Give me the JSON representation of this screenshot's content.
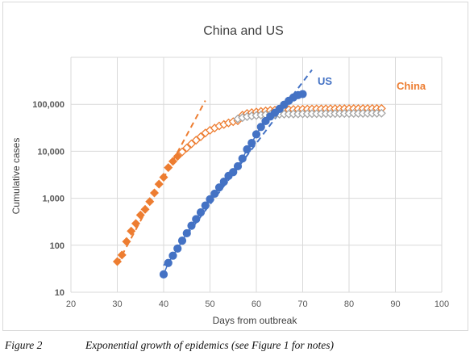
{
  "caption": {
    "label": "Figure 2",
    "text": "Exponential growth of epidemics  (see Figure 1 for notes)"
  },
  "chart_data": {
    "type": "scatter",
    "title": "China  and US",
    "xlabel": "Days from outbreak",
    "ylabel": "Cumulative cases",
    "xlim": [
      20,
      100
    ],
    "ylim": [
      10,
      1000000
    ],
    "yscale": "log",
    "grid": true,
    "x_ticks": [
      "20",
      "30",
      "40",
      "50",
      "60",
      "70",
      "80",
      "90",
      "100"
    ],
    "y_ticks": [
      "10",
      "100",
      "1,000",
      "10,000",
      "100,000"
    ],
    "y_tick_values": [
      10,
      100,
      1000,
      10000,
      100000
    ],
    "series": [
      {
        "name": "China",
        "color": "#ED7D31",
        "marker": "diamond",
        "x": [
          30,
          31,
          32,
          33,
          34,
          35,
          36,
          37,
          38,
          39,
          40,
          41,
          42,
          43,
          44,
          45,
          46,
          47,
          48,
          49,
          50,
          51,
          52,
          53,
          54,
          55,
          56,
          57,
          58,
          59,
          60,
          61,
          62,
          63,
          64,
          65,
          66,
          67,
          68,
          69,
          70,
          71,
          72,
          73,
          74,
          75,
          76,
          77,
          78,
          79,
          80,
          81,
          82,
          83,
          84,
          85,
          86,
          87
        ],
        "y": [
          45,
          62,
          120,
          200,
          290,
          440,
          580,
          850,
          1300,
          2000,
          2800,
          4500,
          6100,
          7800,
          9700,
          11800,
          14400,
          17200,
          20400,
          24500,
          28000,
          31200,
          34600,
          37200,
          40200,
          42700,
          44700,
          58800,
          63900,
          66500,
          68500,
          70500,
          72400,
          74200,
          75000,
          75600,
          76300,
          76900,
          77700,
          78100,
          78600,
          78900,
          79300,
          79800,
          80000,
          80200,
          80400,
          80500,
          80600,
          80700,
          80800,
          80900,
          81000,
          81100,
          81200,
          81300,
          81400,
          81500
        ],
        "filled_until_x": 43,
        "trend_x": [
          30,
          49
        ],
        "trend_y": [
          40,
          120000
        ]
      },
      {
        "name": "",
        "color": "#A5A5A5",
        "marker": "diamond",
        "x": [
          56,
          57,
          58,
          59,
          60,
          61,
          62,
          63,
          64,
          65,
          66,
          67,
          68,
          69,
          70,
          71,
          72,
          73,
          74,
          75,
          76,
          77,
          78,
          79,
          80,
          81,
          82,
          83,
          84,
          85,
          86,
          87
        ],
        "y": [
          49000,
          52000,
          54500,
          56500,
          57800,
          59000,
          59800,
          60500,
          61000,
          61400,
          61700,
          62000,
          62200,
          62400,
          62600,
          62800,
          63000,
          63100,
          63200,
          63300,
          63400,
          63500,
          63600,
          63700,
          63800,
          63900,
          64000,
          64100,
          64200,
          64300,
          64400,
          64500
        ]
      },
      {
        "name": "US",
        "color": "#4472C4",
        "marker": "circle",
        "x": [
          40,
          41,
          42,
          43,
          44,
          45,
          46,
          47,
          48,
          49,
          50,
          51,
          52,
          53,
          54,
          55,
          56,
          57,
          58,
          59,
          60,
          61,
          62,
          63,
          64,
          65,
          66,
          67,
          68,
          69,
          70
        ],
        "y": [
          24,
          42,
          60,
          85,
          125,
          180,
          260,
          360,
          500,
          700,
          950,
          1250,
          1700,
          2250,
          3000,
          3600,
          4800,
          7000,
          11000,
          15000,
          23000,
          33000,
          44000,
          55000,
          66000,
          80000,
          98000,
          119000,
          140000,
          157000,
          165000
        ],
        "trend_x": [
          40,
          72
        ],
        "trend_y": [
          37,
          540000
        ]
      }
    ]
  }
}
